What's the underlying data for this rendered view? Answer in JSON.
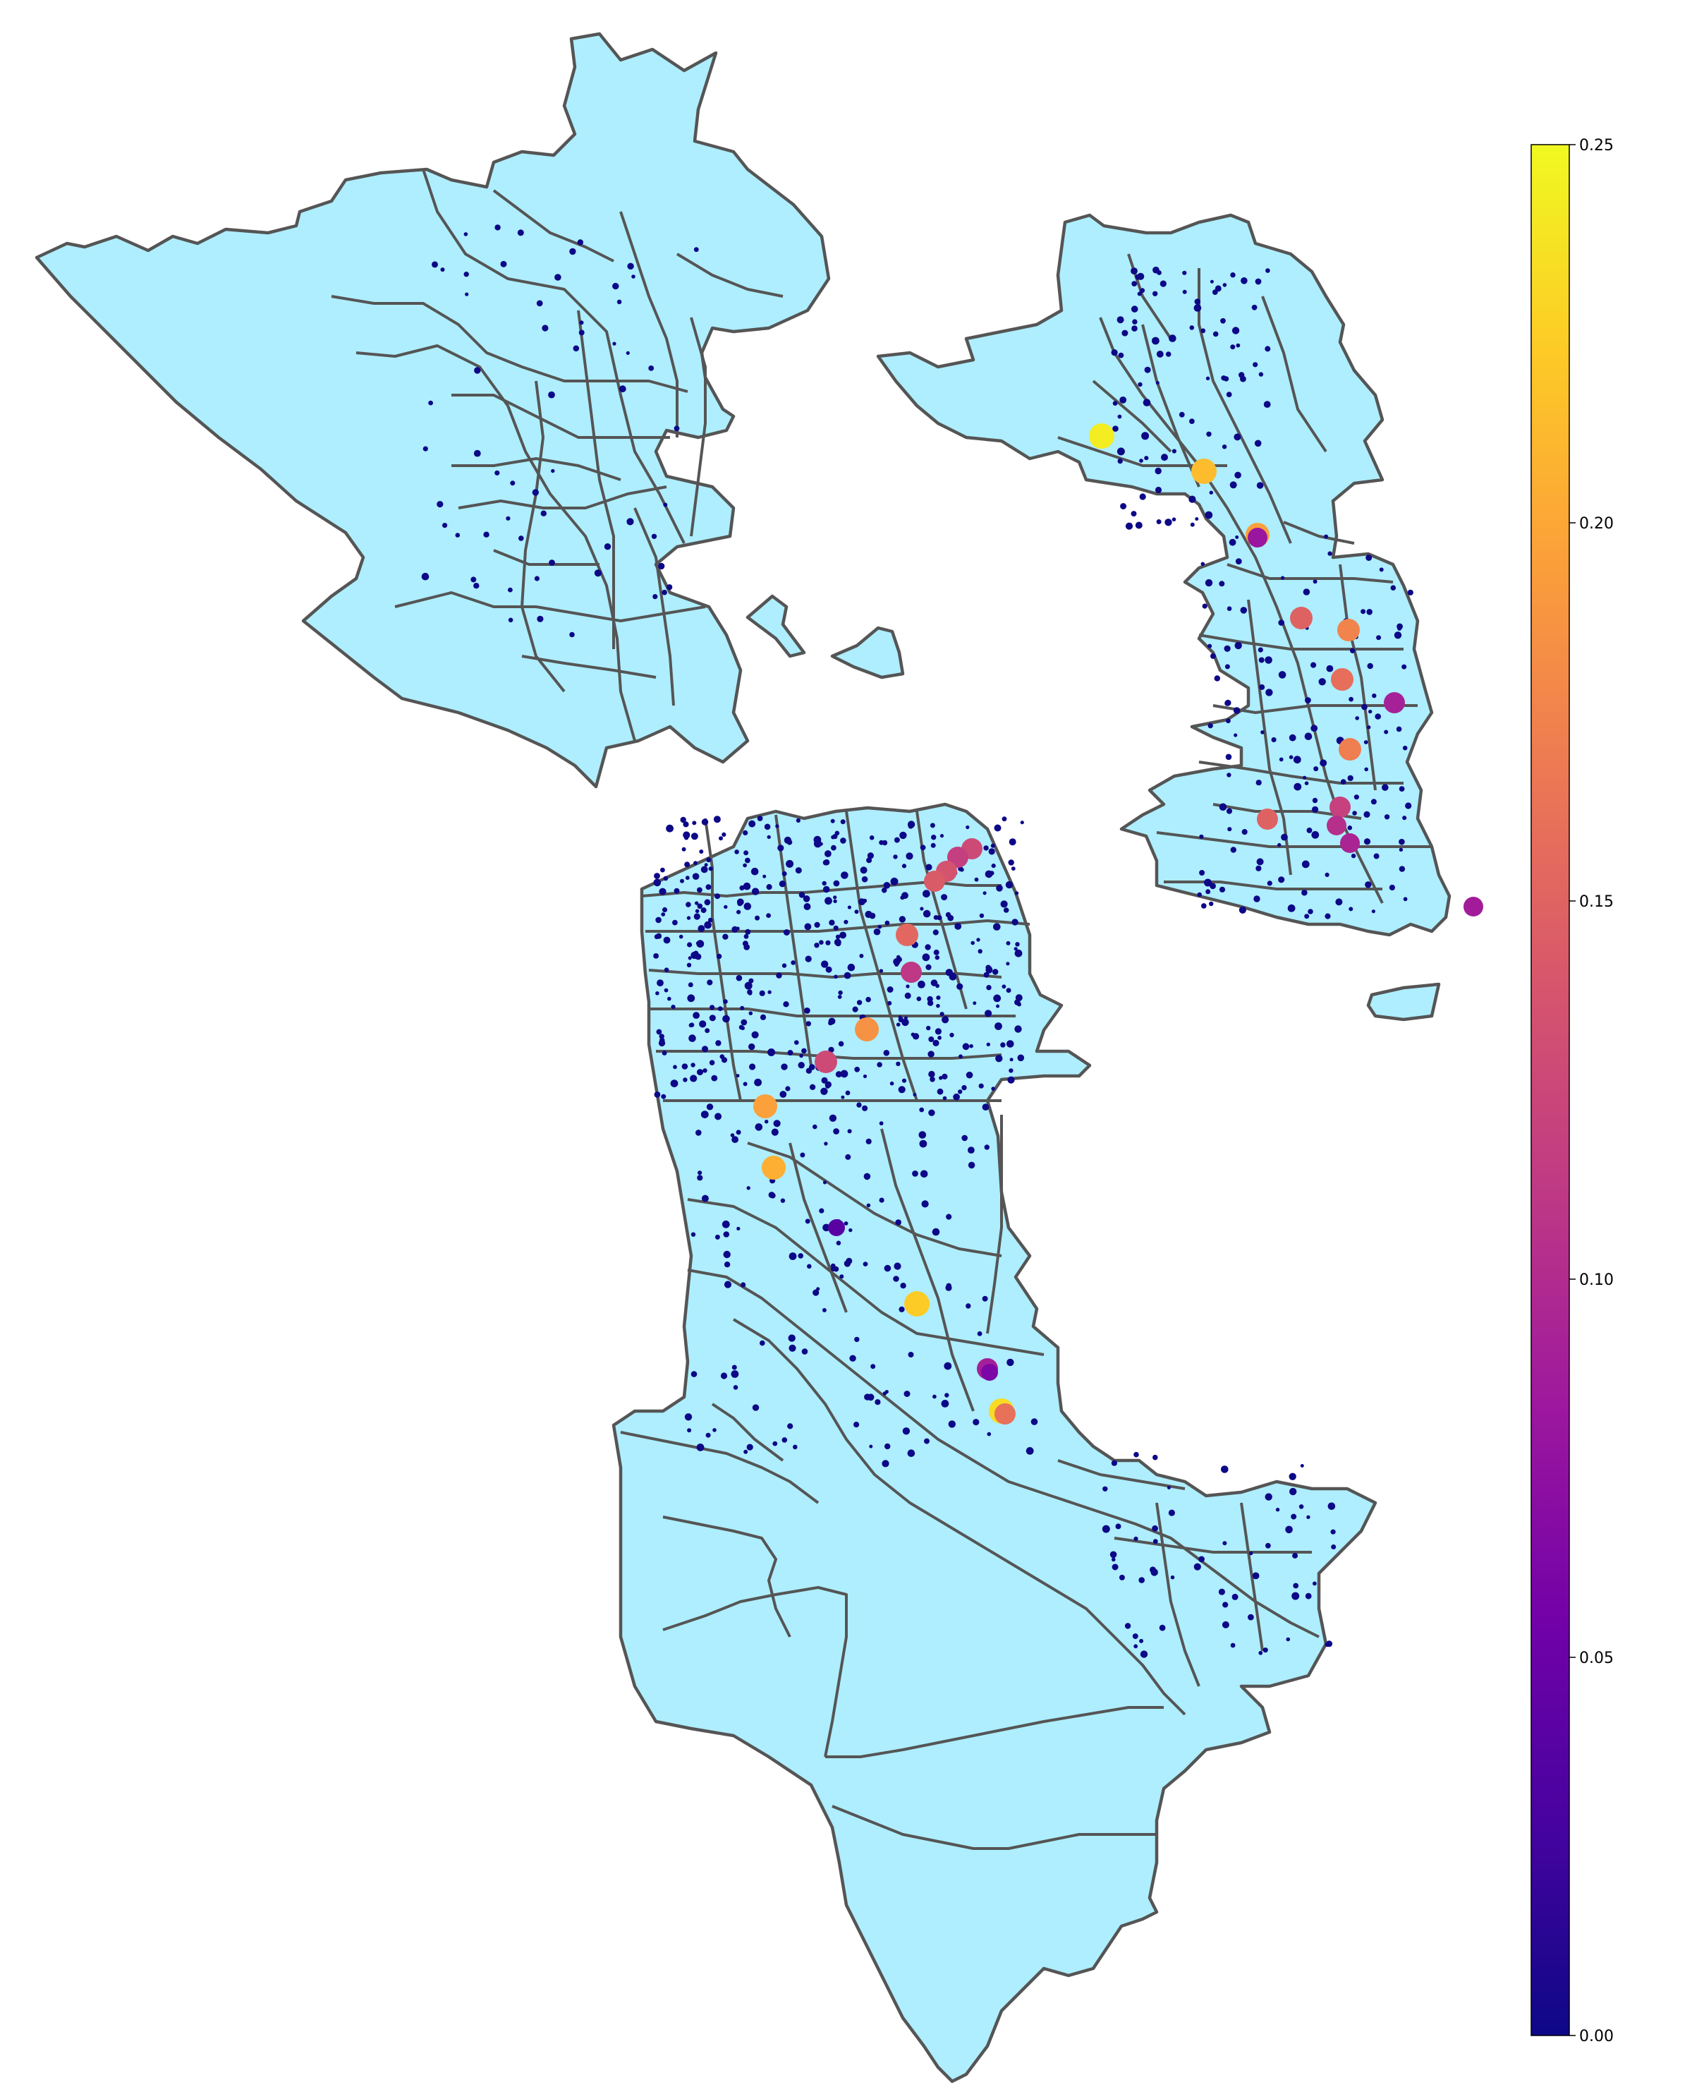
{
  "colorbar": {
    "min": 0.0,
    "max": 0.25,
    "colormap": "plasma",
    "colors": [
      "#0d0887",
      "#46039f",
      "#7201a8",
      "#9c179e",
      "#bd3786",
      "#d8576b",
      "#ed7953",
      "#fb9f3a",
      "#fdca26",
      "#f0f921"
    ],
    "ticks": [
      {
        "value": 0.0,
        "label": "0.00"
      },
      {
        "value": 0.05,
        "label": "0.05"
      },
      {
        "value": 0.1,
        "label": "0.10"
      },
      {
        "value": 0.15,
        "label": "0.15"
      },
      {
        "value": 0.2,
        "label": "0.20"
      },
      {
        "value": 0.25,
        "label": "0.25"
      }
    ]
  },
  "map": {
    "region_fill": "#aeeeff",
    "region_edge": "#555555",
    "regions": [
      "north-peninsula-region",
      "east-bay-region",
      "central-peninsula-region"
    ],
    "station_values": [
      0.243,
      0.213,
      0.195,
      0.082,
      0.148,
      0.175,
      0.158,
      0.092,
      0.17,
      0.148,
      0.12,
      0.105,
      0.095,
      0.128,
      0.118,
      0.135,
      0.142,
      0.152,
      0.112,
      0.128,
      0.185,
      0.195,
      0.205,
      0.04,
      0.223,
      0.09,
      0.062,
      0.232,
      0.16,
      0.088
    ]
  }
}
